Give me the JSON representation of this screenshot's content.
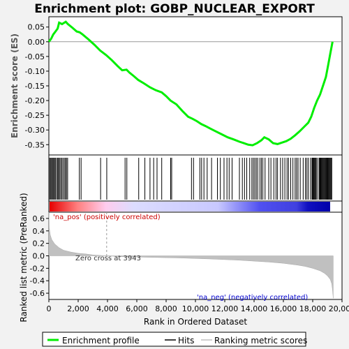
{
  "chart_data": {
    "type": "line",
    "title": "Enrichment plot: GOBP_NUCLEAR_EXPORT",
    "top_panel": {
      "ylabel": "Enrichment score (ES)",
      "ylim": [
        -0.385,
        0.085
      ],
      "yticks": [
        0.05,
        0.0,
        -0.05,
        -0.1,
        -0.15,
        -0.2,
        -0.25,
        -0.3,
        -0.35
      ],
      "ytick_labels": [
        "0.05",
        "0.00",
        "-0.05",
        "-0.10",
        "-0.15",
        "-0.20",
        "-0.25",
        "-0.30",
        "-0.35"
      ],
      "series": [
        {
          "name": "Enrichment profile",
          "color": "#00ee00",
          "x": [
            0,
            150,
            300,
            450,
            600,
            700,
            900,
            1150,
            1300,
            1600,
            1900,
            2100,
            2300,
            2700,
            3100,
            3500,
            3900,
            4300,
            4700,
            5000,
            5300,
            5500,
            5800,
            6100,
            6500,
            6900,
            7300,
            7700,
            8000,
            8300,
            8700,
            9100,
            9500,
            9800,
            10100,
            10400,
            10700,
            11000,
            11400,
            11800,
            12200,
            12600,
            13000,
            13300,
            13600,
            13900,
            14200,
            14500,
            14700,
            15000,
            15300,
            15600,
            15900,
            16200,
            16500,
            16800,
            17100,
            17400,
            17700,
            17900,
            18100,
            18300,
            18500,
            18700,
            18900,
            19050,
            19200,
            19350
          ],
          "y": [
            0.0,
            0.01,
            0.025,
            0.035,
            0.045,
            0.065,
            0.06,
            0.068,
            0.06,
            0.048,
            0.035,
            0.032,
            0.025,
            0.008,
            -0.01,
            -0.03,
            -0.045,
            -0.063,
            -0.083,
            -0.097,
            -0.095,
            -0.105,
            -0.117,
            -0.13,
            -0.142,
            -0.155,
            -0.165,
            -0.172,
            -0.185,
            -0.2,
            -0.213,
            -0.235,
            -0.255,
            -0.262,
            -0.27,
            -0.28,
            -0.287,
            -0.295,
            -0.305,
            -0.315,
            -0.325,
            -0.332,
            -0.34,
            -0.345,
            -0.35,
            -0.352,
            -0.345,
            -0.335,
            -0.325,
            -0.332,
            -0.345,
            -0.348,
            -0.343,
            -0.338,
            -0.33,
            -0.318,
            -0.305,
            -0.29,
            -0.275,
            -0.255,
            -0.225,
            -0.2,
            -0.18,
            -0.15,
            -0.12,
            -0.08,
            -0.04,
            0.0
          ]
        }
      ]
    },
    "hits_panel": {
      "positions": [
        60,
        130,
        190,
        250,
        320,
        380,
        440,
        520,
        600,
        660,
        720,
        800,
        880,
        960,
        1050,
        1130,
        1200,
        1280,
        2080,
        2200,
        3530,
        3950,
        5200,
        5320,
        6130,
        6550,
        6900,
        7150,
        7380,
        7700,
        8310,
        8380,
        9730,
        9870,
        10300,
        10420,
        10580,
        10800,
        11100,
        11500,
        11700,
        11950,
        12150,
        12300,
        12500,
        13000,
        13200,
        13350,
        13500,
        13700,
        13850,
        13950,
        14050,
        14150,
        14250,
        14400,
        14500,
        14600,
        14750,
        15000,
        15150,
        15350,
        15500,
        15600,
        15800,
        15950,
        16100,
        16250,
        16350,
        16500,
        16650,
        16800,
        16900,
        17000,
        17150,
        17350,
        17500,
        17600,
        17700,
        17850,
        17950,
        18000,
        18050,
        18100,
        18150,
        18200,
        18250,
        18350,
        18450,
        18500,
        18550,
        18600,
        18650,
        18700,
        18750,
        18800,
        18850,
        18900,
        18950,
        19000,
        19050,
        19100,
        19150,
        19200,
        19250,
        19300
      ]
    },
    "bottom_panel": {
      "ylabel": "Ranked list metric (PreRanked)",
      "xlabel": "Rank in Ordered Dataset",
      "xlim": [
        0,
        20000
      ],
      "xticks": [
        0,
        2000,
        4000,
        6000,
        8000,
        10000,
        12000,
        14000,
        16000,
        18000,
        20000
      ],
      "xtick_labels": [
        "0",
        "2,000",
        "4,000",
        "6,000",
        "8,000",
        "10,000",
        "12,000",
        "14,000",
        "16,000",
        "18,000",
        "20,000"
      ],
      "ylim": [
        -0.7,
        0.7
      ],
      "yticks": [
        0.6,
        0.4,
        0.2,
        0.0,
        -0.2,
        -0.4,
        -0.6
      ],
      "ytick_labels": [
        "0.6",
        "0.4",
        "0.2",
        "0.0",
        "-0.2",
        "-0.4",
        "-0.6"
      ],
      "metric": {
        "x": [
          0,
          30,
          100,
          200,
          400,
          700,
          1000,
          1500,
          2000,
          2500,
          3000,
          3943,
          5000,
          7000,
          9000,
          11000,
          13000,
          15000,
          16000,
          17000,
          17500,
          18000,
          18500,
          18800,
          19000,
          19200,
          19300,
          19350,
          19400
        ],
        "y": [
          0.7,
          0.45,
          0.33,
          0.26,
          0.19,
          0.13,
          0.09,
          0.06,
          0.04,
          0.03,
          0.015,
          0.0,
          -0.015,
          -0.025,
          -0.035,
          -0.05,
          -0.07,
          -0.1,
          -0.12,
          -0.15,
          -0.17,
          -0.2,
          -0.24,
          -0.28,
          -0.32,
          -0.38,
          -0.45,
          -0.55,
          -0.68
        ]
      },
      "zero_cross_label": "Zero cross at 3943",
      "zero_cross": 3943,
      "pos_label": "'na_pos' (positively correlated)",
      "neg_label": "'na_neg' (negatively correlated)",
      "pos_color": "#cc0000",
      "neg_color": "#0000cc"
    },
    "legend": {
      "placement": "bottom",
      "items": [
        "Enrichment profile",
        "Hits",
        "Ranking metric scores"
      ]
    }
  }
}
